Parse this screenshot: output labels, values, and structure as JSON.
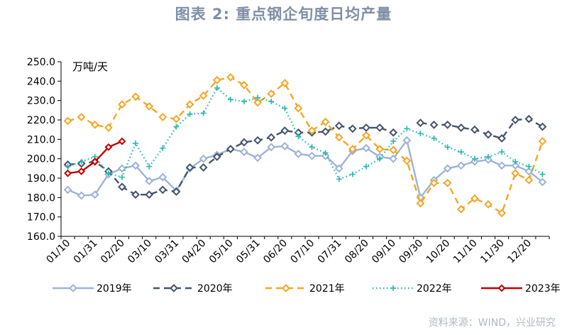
{
  "header": {
    "title": "图表 2:  重点钢企旬度日均产量",
    "source": "资料来源：WIND，兴业研究"
  },
  "chart_data": {
    "type": "line",
    "title": "图表 2:  重点钢企旬度日均产量",
    "ylabel": "万吨/天",
    "ylim": [
      160,
      250
    ],
    "yticks": [
      "250.0",
      "240.0",
      "230.0",
      "220.0",
      "210.0",
      "200.0",
      "190.0",
      "180.0",
      "170.0",
      "160.0"
    ],
    "x_tick_labels": [
      "01/10",
      "01/31",
      "02/20",
      "03/10",
      "03/31",
      "04/20",
      "05/10",
      "05/31",
      "06/20",
      "07/10",
      "07/31",
      "08/20",
      "09/10",
      "09/30",
      "10/20",
      "11/10",
      "11/30",
      "12/20"
    ],
    "periods": 36,
    "legend_position": "bottom",
    "grid": false,
    "series": [
      {
        "name": "2019年",
        "color": "#9db3d6",
        "style": "solid",
        "marker": "diamond",
        "values": [
          184,
          181,
          181.5,
          192,
          195,
          196.5,
          188.5,
          190.5,
          183.5,
          195,
          200,
          202,
          205,
          203.5,
          200.5,
          206,
          206.5,
          202.5,
          201.5,
          201.5,
          195,
          204,
          205.5,
          201,
          200,
          209.5,
          180,
          189,
          195,
          196.5,
          198.5,
          199.5,
          196.5,
          196.5,
          193.5,
          188
        ]
      },
      {
        "name": "2020年",
        "color": "#44546a",
        "style": "dash",
        "marker": "diamond",
        "values": [
          197,
          197.5,
          198.5,
          193.5,
          185.5,
          181.5,
          181.5,
          184,
          183,
          195.5,
          195.5,
          201,
          205,
          208.5,
          209.5,
          211,
          214.5,
          213.5,
          213.5,
          214,
          217,
          215.5,
          216,
          216,
          213.5,
          null,
          218.5,
          217.5,
          217.5,
          216,
          215,
          212.5,
          210.5,
          220,
          220.5,
          216.5
        ]
      },
      {
        "name": "2021年",
        "color": "#f5a623",
        "style": "dash",
        "marker": "diamond",
        "values": [
          219.5,
          221.5,
          217.5,
          216,
          228,
          232,
          227,
          221.5,
          220.5,
          228,
          232.5,
          240.5,
          242,
          238,
          229,
          233.5,
          239,
          226,
          214.5,
          219,
          211,
          205,
          212,
          205,
          204.5,
          199,
          177,
          187.5,
          187.5,
          174,
          179.5,
          176.5,
          172,
          192.5,
          189,
          209
        ]
      },
      {
        "name": "2022年",
        "color": "#2ab9b0",
        "style": "dot",
        "marker": "cross",
        "values": [
          196,
          198.5,
          201,
          192.5,
          190.5,
          208,
          196,
          205.5,
          216.5,
          223,
          223.5,
          236.5,
          230.5,
          229.5,
          231.5,
          229.5,
          226,
          211.5,
          206,
          203,
          189.5,
          192,
          196,
          200,
          209,
          215.5,
          213,
          210.5,
          206,
          203.5,
          200,
          201,
          203.5,
          198.5,
          196,
          192
        ]
      },
      {
        "name": "2023年",
        "color": "#c00000",
        "style": "solid",
        "marker": "diamond",
        "values": [
          192.5,
          193.5,
          198.5,
          206,
          209
        ]
      }
    ]
  }
}
